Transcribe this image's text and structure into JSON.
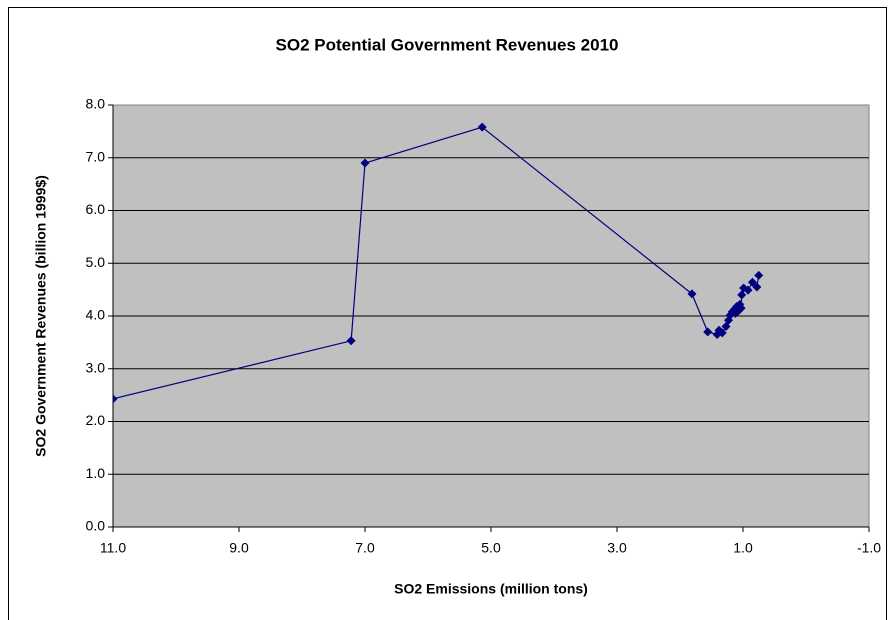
{
  "chart_data": {
    "type": "scatter-line",
    "title": "SO2 Potential Government Revenues 2010",
    "x_label": "SO2 Emissions (million tons)",
    "y_label": "SO2 Government Revenues (billion 1999$)",
    "xlim": [
      11,
      -1
    ],
    "ylim": [
      0,
      8
    ],
    "xticks": [
      {
        "value": 11,
        "label": "11.0"
      },
      {
        "value": 9,
        "label": "9.0"
      },
      {
        "value": 7,
        "label": "7.0"
      },
      {
        "value": 5,
        "label": "5.0"
      },
      {
        "value": 3,
        "label": "3.0"
      },
      {
        "value": 1,
        "label": "1.0"
      },
      {
        "value": -1,
        "label": "-1.0"
      }
    ],
    "yticks": [
      {
        "value": 0,
        "label": "0.0"
      },
      {
        "value": 1,
        "label": "1.0"
      },
      {
        "value": 2,
        "label": "2.0"
      },
      {
        "value": 3,
        "label": "3.0"
      },
      {
        "value": 4,
        "label": "4.0"
      },
      {
        "value": 5,
        "label": "5.0"
      },
      {
        "value": 6,
        "label": "6.0"
      },
      {
        "value": 7,
        "label": "7.0"
      },
      {
        "value": 8,
        "label": "8.0"
      }
    ],
    "grid": true,
    "series": [
      {
        "color": "#000080",
        "x": [
          11.0,
          7.22,
          7.0,
          5.14,
          1.81,
          1.56,
          1.41,
          1.38,
          1.33,
          1.27,
          1.23,
          1.2,
          1.17,
          1.14,
          1.12,
          1.1,
          1.07,
          1.05,
          1.03,
          1.02,
          0.99,
          0.92,
          0.85,
          0.78,
          0.75
        ],
        "values": [
          2.43,
          3.53,
          6.9,
          7.58,
          4.42,
          3.7,
          3.65,
          3.73,
          3.68,
          3.8,
          3.92,
          4.02,
          4.08,
          4.12,
          4.05,
          4.18,
          4.1,
          4.22,
          4.15,
          4.4,
          4.53,
          4.49,
          4.64,
          4.55,
          4.77
        ]
      }
    ]
  }
}
